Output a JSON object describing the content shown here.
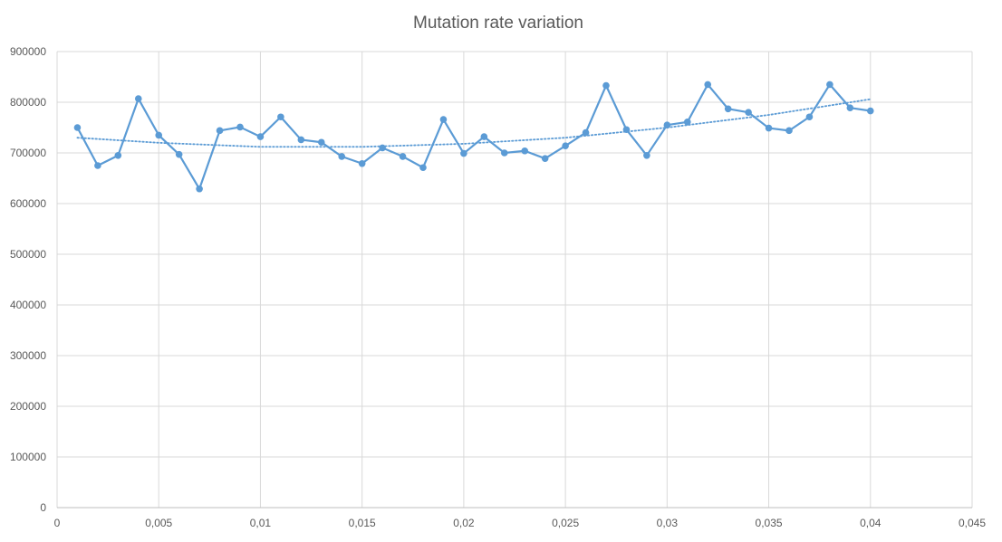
{
  "chart_data": {
    "type": "line",
    "title": "Mutation rate variation",
    "xlabel": "",
    "ylabel": "",
    "xlim": [
      0,
      0.045
    ],
    "ylim": [
      0,
      900000
    ],
    "x_ticks": [
      "0",
      "0,005",
      "0,01",
      "0,015",
      "0,02",
      "0,025",
      "0,03",
      "0,035",
      "0,04",
      "0,045"
    ],
    "y_ticks": [
      "0",
      "100000",
      "200000",
      "300000",
      "400000",
      "500000",
      "600000",
      "700000",
      "800000",
      "900000"
    ],
    "grid": true,
    "legend": "none",
    "series": [
      {
        "color": "#5b9bd5",
        "x": [
          0.001,
          0.002,
          0.003,
          0.004,
          0.005,
          0.006,
          0.007,
          0.008,
          0.009,
          0.01,
          0.011,
          0.012,
          0.013,
          0.014,
          0.015,
          0.016,
          0.017,
          0.018,
          0.019,
          0.02,
          0.021,
          0.022,
          0.023,
          0.024,
          0.025,
          0.026,
          0.027,
          0.028,
          0.029,
          0.03,
          0.031,
          0.032,
          0.033,
          0.034,
          0.035,
          0.036,
          0.037,
          0.038,
          0.039,
          0.04
        ],
        "values": [
          750000,
          675000,
          695000,
          807000,
          735000,
          697000,
          629000,
          744000,
          751000,
          732000,
          771000,
          726000,
          721000,
          693000,
          679000,
          710000,
          693000,
          671000,
          766000,
          699000,
          732000,
          700000,
          704000,
          689000,
          714000,
          740000,
          833000,
          746000,
          695000,
          755000,
          761000,
          835000,
          787000,
          780000,
          749000,
          744000,
          771000,
          835000,
          789000,
          783000
        ]
      }
    ],
    "trendline": {
      "type": "polynomial",
      "style": "dotted",
      "color": "#5b9bd5",
      "x": [
        0.001,
        0.005,
        0.01,
        0.015,
        0.02,
        0.025,
        0.03,
        0.035,
        0.04
      ],
      "values": [
        730000,
        720000,
        712000,
        712000,
        718000,
        730000,
        750000,
        775000,
        806000
      ]
    }
  }
}
